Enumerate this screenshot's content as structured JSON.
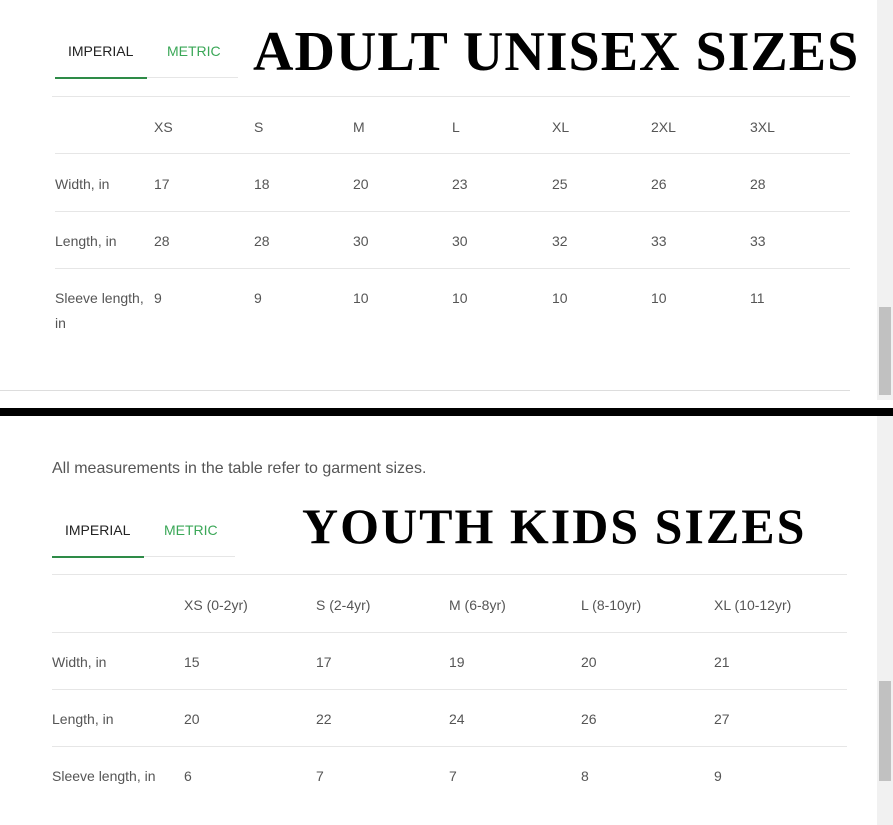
{
  "adult": {
    "title": "ADULT UNISEX SIZES",
    "tabs": [
      {
        "label": "IMPERIAL",
        "active": true
      },
      {
        "label": "METRIC",
        "active": false
      }
    ],
    "columns": [
      "XS",
      "S",
      "M",
      "L",
      "XL",
      "2XL",
      "3XL"
    ],
    "rows": [
      {
        "label": "Width, in",
        "values": [
          "17",
          "18",
          "20",
          "23",
          "25",
          "26",
          "28"
        ]
      },
      {
        "label": "Length, in",
        "values": [
          "28",
          "28",
          "30",
          "30",
          "32",
          "33",
          "33"
        ]
      },
      {
        "label": "Sleeve length, in",
        "values": [
          "9",
          "9",
          "10",
          "10",
          "10",
          "10",
          "11"
        ]
      }
    ]
  },
  "youth": {
    "note": "All measurements in the table refer to garment sizes.",
    "title": "YOUTH KIDS SIZES",
    "tabs": [
      {
        "label": "IMPERIAL",
        "active": true
      },
      {
        "label": "METRIC",
        "active": false
      }
    ],
    "columns": [
      "XS (0-2yr)",
      "S (2-4yr)",
      "M (6-8yr)",
      "L (8-10yr)",
      "XL (10-12yr)"
    ],
    "rows": [
      {
        "label": "Width, in",
        "values": [
          "15",
          "17",
          "19",
          "20",
          "21"
        ]
      },
      {
        "label": "Length, in",
        "values": [
          "20",
          "22",
          "24",
          "26",
          "27"
        ]
      },
      {
        "label": "Sleeve length, in",
        "values": [
          "6",
          "7",
          "7",
          "8",
          "9"
        ]
      }
    ]
  },
  "colors": {
    "accent": "#3aa757",
    "underline": "#2e8b47"
  }
}
